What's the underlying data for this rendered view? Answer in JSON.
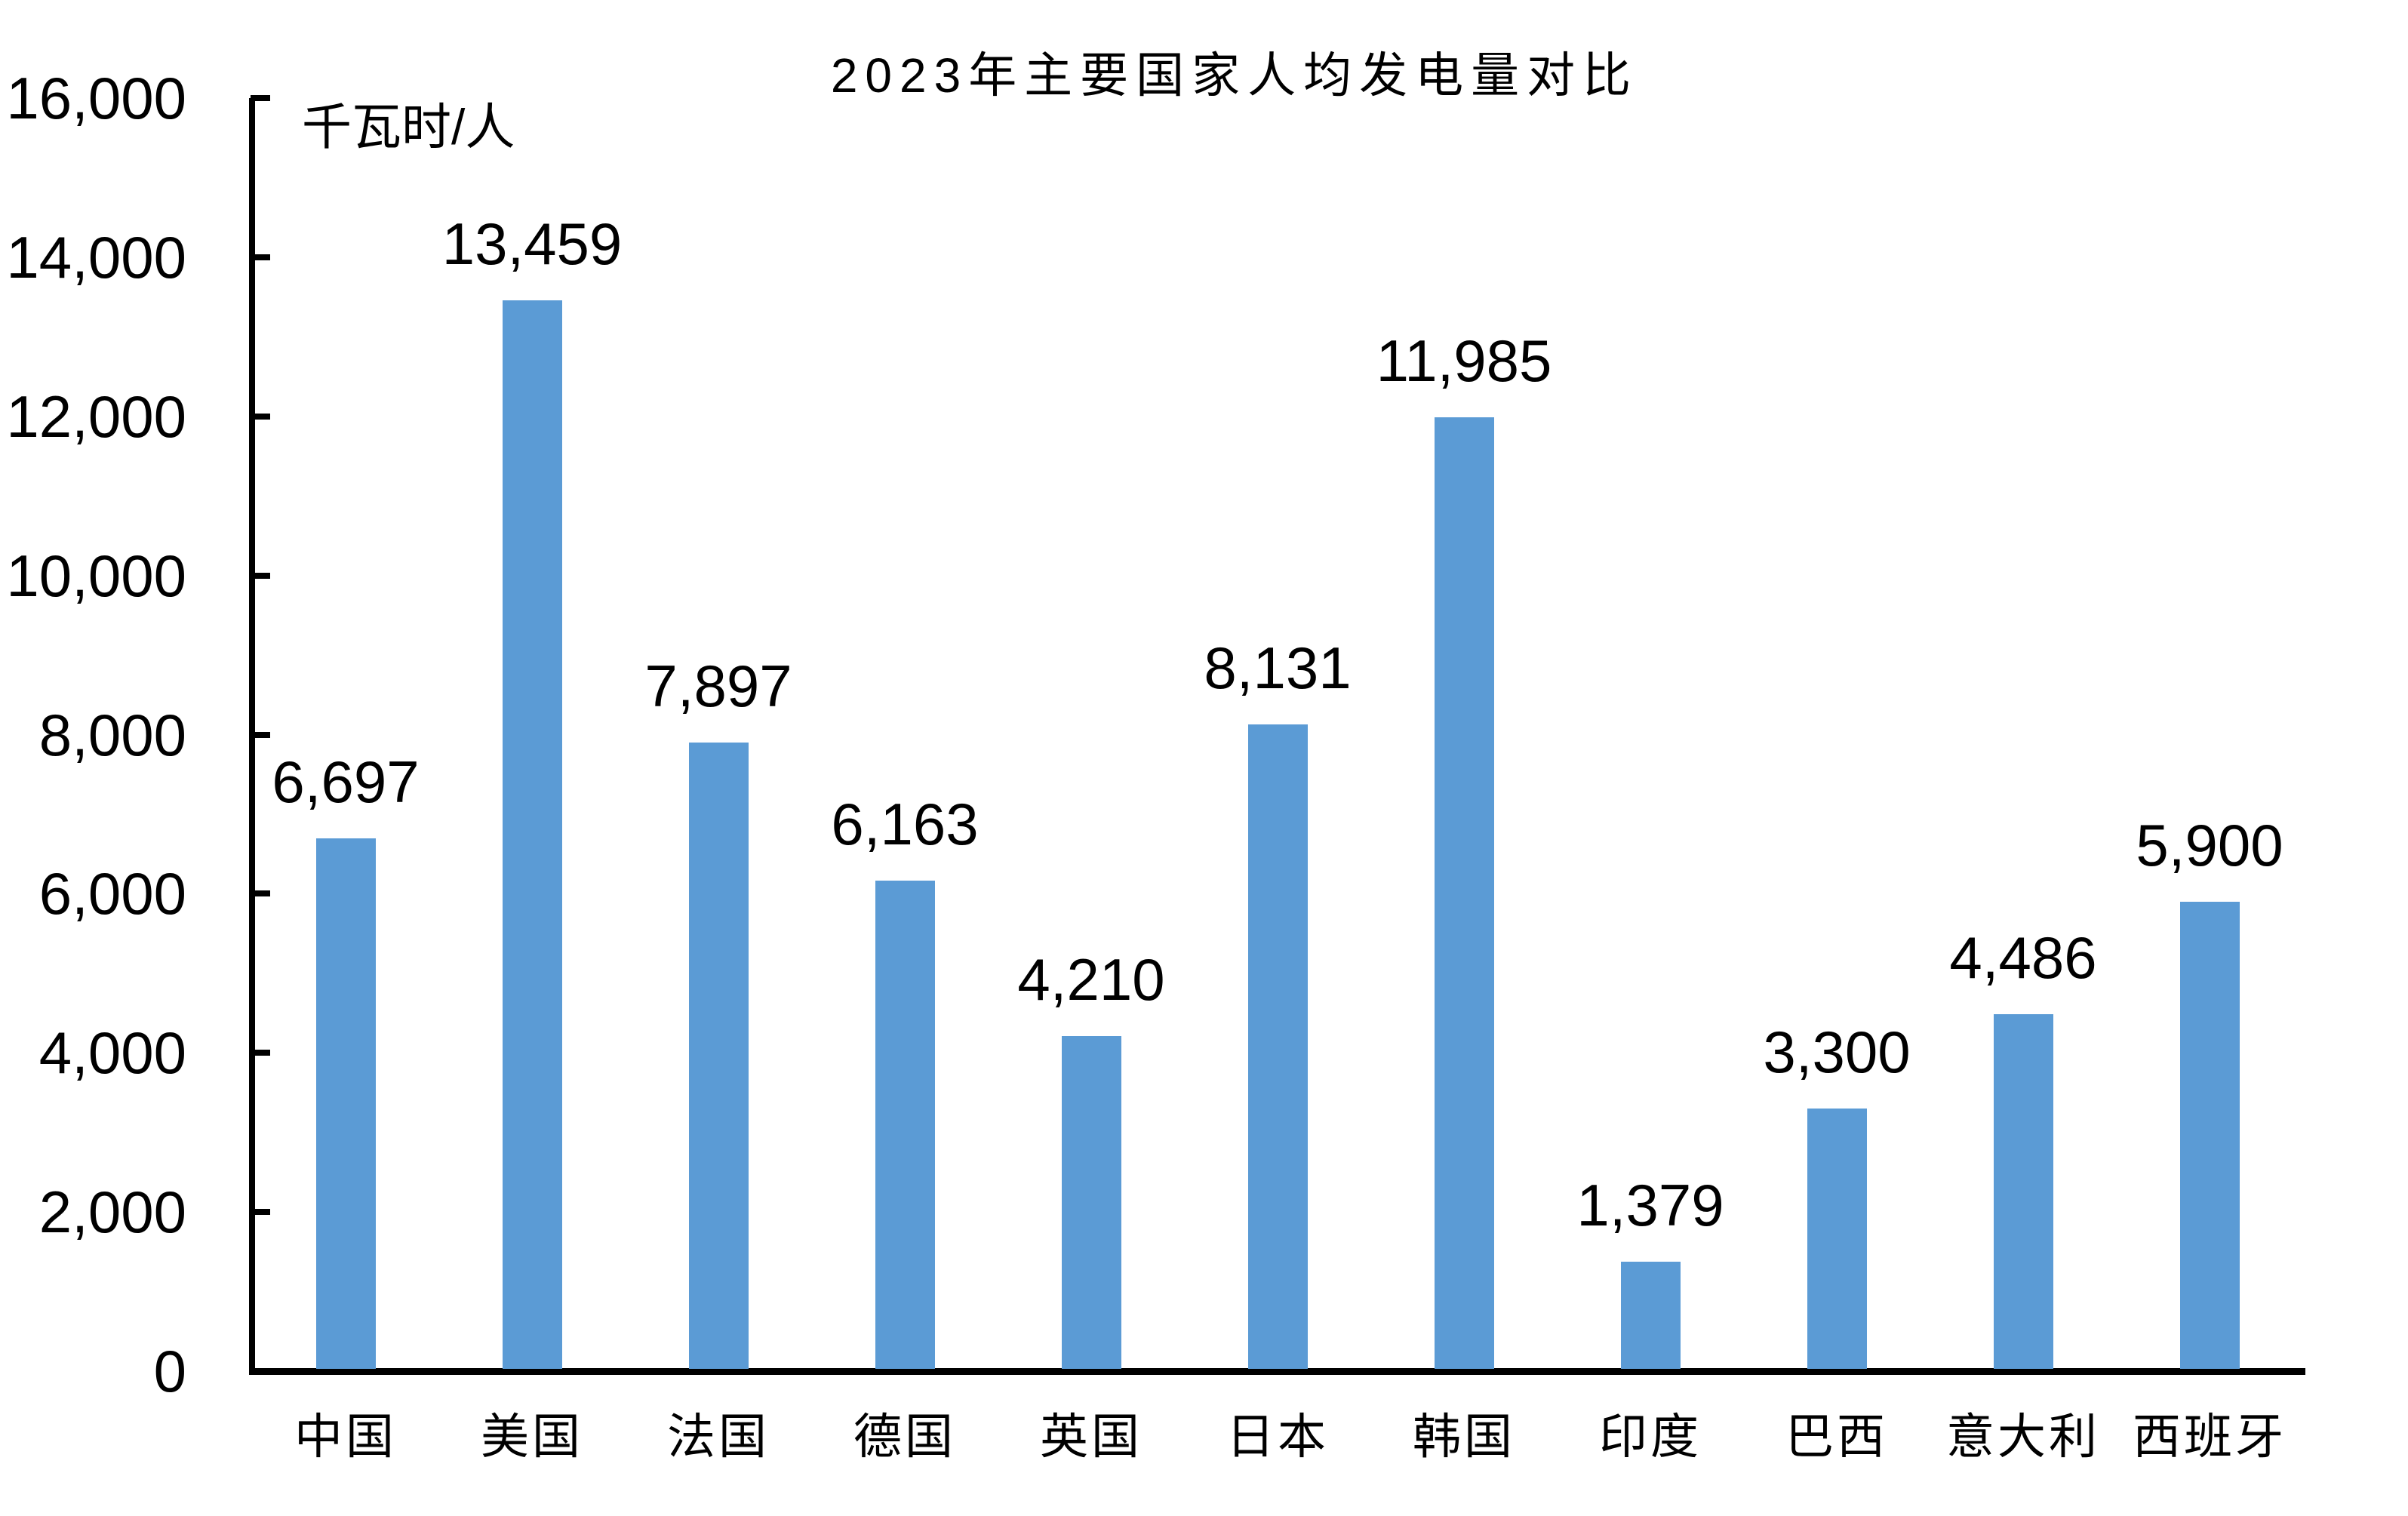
{
  "chart_data": {
    "type": "bar",
    "title": "2023年主要国家人均发电量对比",
    "ylabel": "千瓦时/人",
    "xlabel": "",
    "categories": [
      "中国",
      "美国",
      "法国",
      "德国",
      "英国",
      "日本",
      "韩国",
      "印度",
      "巴西",
      "意大利",
      "西班牙"
    ],
    "values": [
      6697,
      13459,
      7897,
      6163,
      4210,
      8131,
      11985,
      1379,
      3300,
      4486,
      5900
    ],
    "value_labels": [
      "6,697",
      "13,459",
      "7,897",
      "6,163",
      "4,210",
      "8,131",
      "11,985",
      "1,379",
      "3,300",
      "4,486",
      "5,900"
    ],
    "ylim": [
      0,
      16000
    ],
    "y_tick_step": 2000,
    "y_tick_labels": [
      "0",
      "2,000",
      "4,000",
      "6,000",
      "8,000",
      "10,000",
      "12,000",
      "14,000",
      "16,000"
    ],
    "bar_color": "#5B9BD5",
    "axis_color": "#000000",
    "text_color": "#000000",
    "background_color": "#FFFFFF",
    "grid": "off",
    "legend": "none"
  }
}
